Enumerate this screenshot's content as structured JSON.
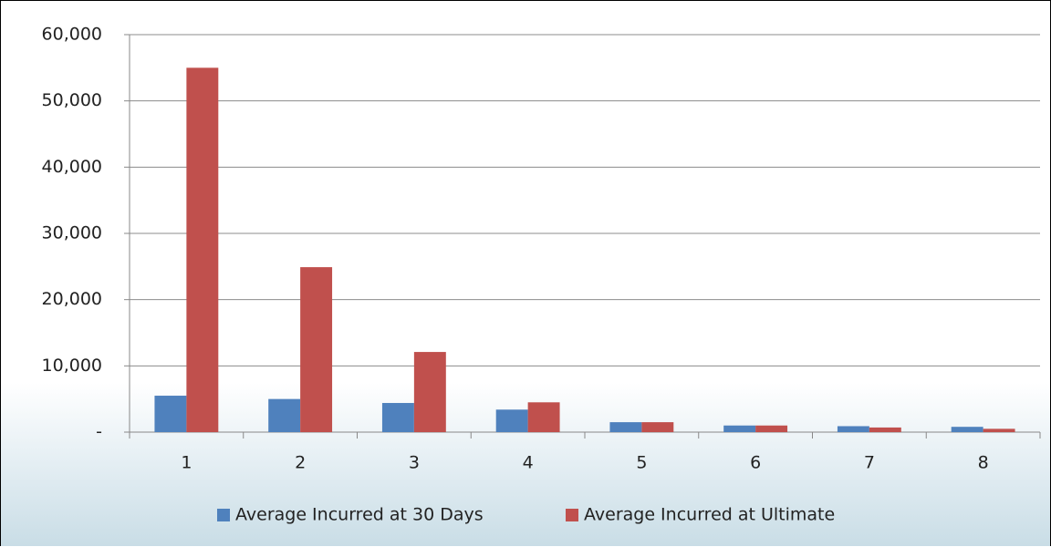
{
  "chart_data": {
    "type": "bar",
    "categories": [
      "1",
      "2",
      "3",
      "4",
      "5",
      "6",
      "7",
      "8"
    ],
    "series": [
      {
        "name": "Average Incurred at 30 Days",
        "color": "#4f81bd",
        "values": [
          5500,
          5000,
          4400,
          3400,
          1500,
          1000,
          900,
          800
        ]
      },
      {
        "name": "Average Incurred at Ultimate",
        "color": "#c0504d",
        "values": [
          55000,
          24900,
          12100,
          4500,
          1500,
          1000,
          700,
          500
        ]
      }
    ],
    "ylim": [
      0,
      60000
    ],
    "yticks": [
      {
        "value": 0,
        "label": "-"
      },
      {
        "value": 10000,
        "label": "10,000"
      },
      {
        "value": 20000,
        "label": "20,000"
      },
      {
        "value": 30000,
        "label": "30,000"
      },
      {
        "value": 40000,
        "label": "40,000"
      },
      {
        "value": 50000,
        "label": "50,000"
      },
      {
        "value": 60000,
        "label": "60,000"
      }
    ],
    "grid": true,
    "legend": "bottom"
  }
}
